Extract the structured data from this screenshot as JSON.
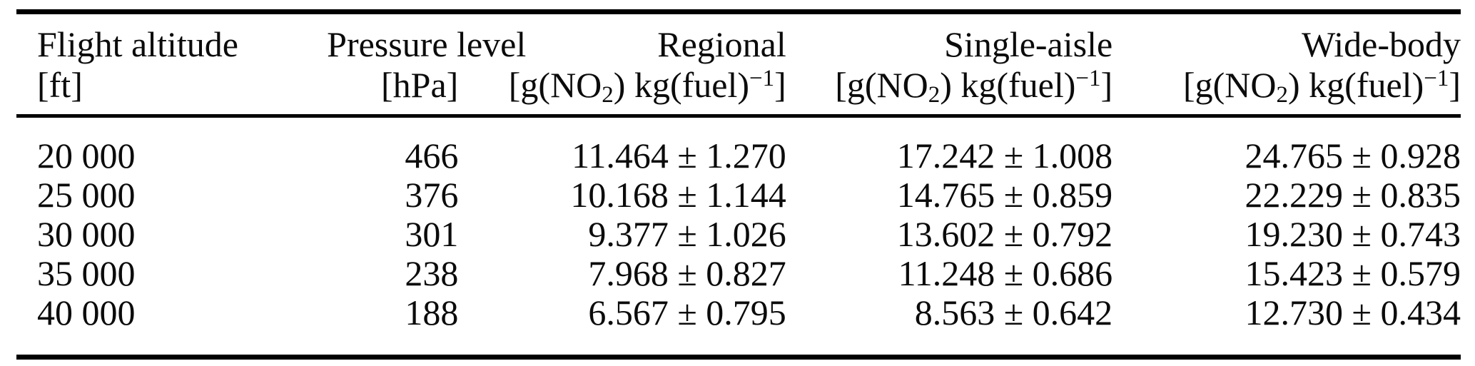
{
  "page": {
    "background_color": "#ffffff",
    "text_color": "#0b0b0b",
    "rule_color": "#000000"
  },
  "table": {
    "header": {
      "col1": {
        "label": "Flight altitude",
        "unit": "[ft]"
      },
      "col2": {
        "label": "Pressure level",
        "unit": "[hPa]"
      },
      "col3": {
        "label": "Regional"
      },
      "col4": {
        "label": "Single-aisle"
      },
      "col5": {
        "label": "Wide-body"
      },
      "emission_unit": {
        "open": "[g(NO",
        "sub": "2",
        "mid": ") kg(fuel)",
        "sup": "−1",
        "close": "]"
      }
    },
    "rows": [
      {
        "altitude_ft": "20 000",
        "pressure_hpa": "466",
        "regional": "11.464 ± 1.270",
        "single_aisle": "17.242 ± 1.008",
        "wide_body": "24.765 ± 0.928"
      },
      {
        "altitude_ft": "25 000",
        "pressure_hpa": "376",
        "regional": "10.168 ± 1.144",
        "single_aisle": "14.765 ± 0.859",
        "wide_body": "22.229 ± 0.835"
      },
      {
        "altitude_ft": "30 000",
        "pressure_hpa": "301",
        "regional": "9.377 ± 1.026",
        "single_aisle": "13.602 ± 0.792",
        "wide_body": "19.230 ± 0.743"
      },
      {
        "altitude_ft": "35 000",
        "pressure_hpa": "238",
        "regional": "7.968 ± 0.827",
        "single_aisle": "11.248 ± 0.686",
        "wide_body": "15.423 ± 0.579"
      },
      {
        "altitude_ft": "40 000",
        "pressure_hpa": "188",
        "regional": "6.567 ± 0.795",
        "single_aisle": "8.563 ± 0.642",
        "wide_body": "12.730 ± 0.434"
      }
    ]
  }
}
